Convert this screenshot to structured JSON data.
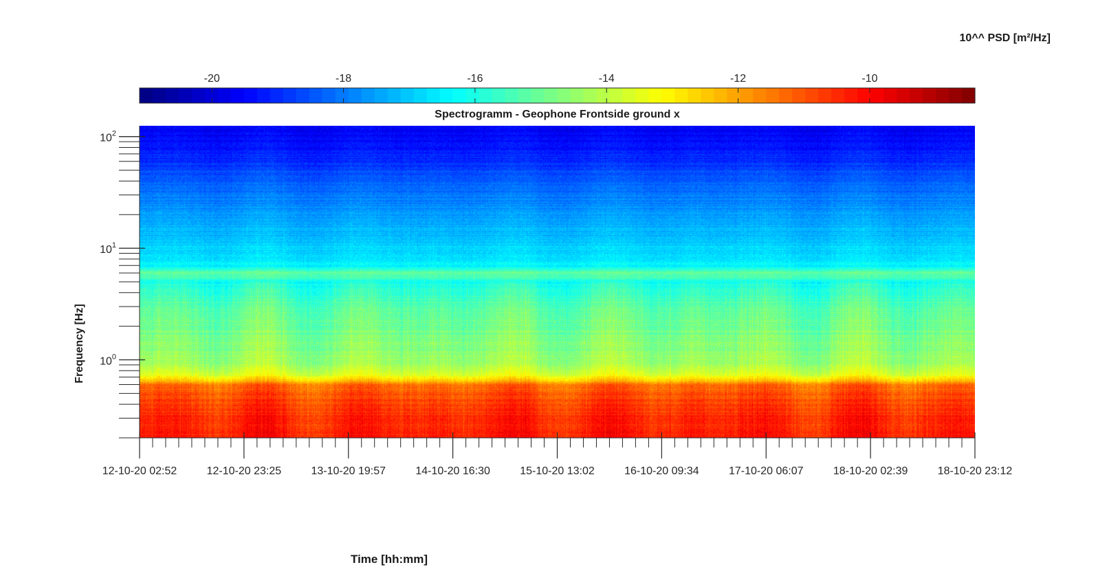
{
  "chart_data": {
    "type": "heatmap",
    "title": "Spectrogramm - Geophone Frontside ground x",
    "xlabel": "Time [hh:mm]",
    "ylabel": "Frequency [Hz]",
    "colorbar_label": "10^^ PSD [m²/Hz]",
    "colormap": "jet",
    "colorbar_location": "top",
    "x_tick_labels": [
      "12-10-20 02:52",
      "12-10-20 23:25",
      "13-10-20 19:57",
      "14-10-20 16:30",
      "15-10-20 13:02",
      "16-10-20 09:34",
      "17-10-20 06:07",
      "18-10-20 02:39",
      "18-10-20 23:12"
    ],
    "y_scale": "log",
    "ylim": [
      0.2,
      125
    ],
    "y_ticks": [
      {
        "base": "10",
        "exp": "0",
        "value": 1
      },
      {
        "base": "10",
        "exp": "1",
        "value": 10
      },
      {
        "base": "10",
        "exp": "2",
        "value": 100
      }
    ],
    "clim": [
      -21.1,
      -8.4
    ],
    "colorbar_ticks": [
      {
        "label": "-20",
        "value": -20
      },
      {
        "label": "-18",
        "value": -18
      },
      {
        "label": "-16",
        "value": -16
      },
      {
        "label": "-14",
        "value": -14
      },
      {
        "label": "-12",
        "value": -12
      },
      {
        "label": "-10",
        "value": -10
      }
    ],
    "psd_profile": [
      {
        "freq": 0.2,
        "psd": -10.2
      },
      {
        "freq": 0.3,
        "psd": -10.5
      },
      {
        "freq": 0.45,
        "psd": -10.8
      },
      {
        "freq": 0.6,
        "psd": -11.4
      },
      {
        "freq": 0.7,
        "psd": -13.2
      },
      {
        "freq": 0.9,
        "psd": -14.3
      },
      {
        "freq": 1.5,
        "psd": -14.7
      },
      {
        "freq": 3,
        "psd": -15.2
      },
      {
        "freq": 5,
        "psd": -16.0
      },
      {
        "freq": 6,
        "psd": -15.0
      },
      {
        "freq": 6.8,
        "psd": -16.4
      },
      {
        "freq": 10,
        "psd": -16.9
      },
      {
        "freq": 20,
        "psd": -17.6
      },
      {
        "freq": 40,
        "psd": -18.3
      },
      {
        "freq": 70,
        "psd": -19.2
      },
      {
        "freq": 125,
        "psd": -19.6
      }
    ]
  }
}
